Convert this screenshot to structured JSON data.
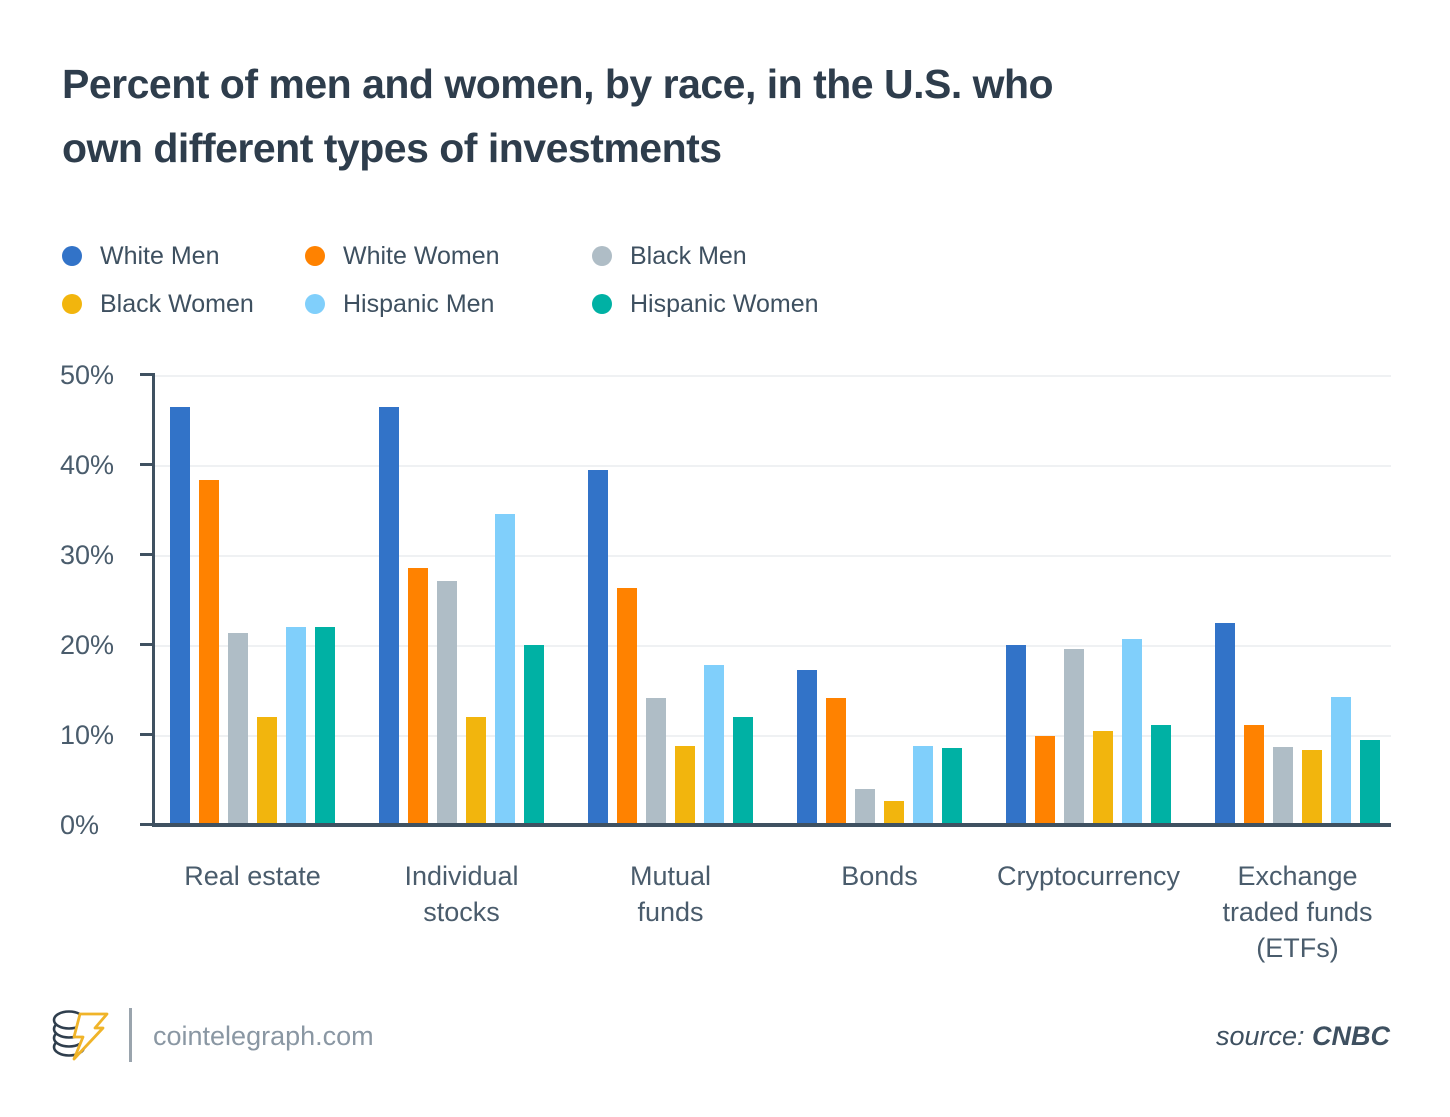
{
  "chart_data": {
    "type": "bar",
    "title": "Percent of men and women, by race, in the U.S. who own different types of investments",
    "title_lines": [
      "Percent of men and women, by race, in the U.S. who",
      "own different types of investments"
    ],
    "categories": [
      "Real estate",
      "Individual stocks",
      "Mutual funds",
      "Bonds",
      "Cryptocurrency",
      "Exchange traded funds (ETFs)"
    ],
    "category_label_lines": [
      [
        "Real estate"
      ],
      [
        "Individual",
        "stocks"
      ],
      [
        "Mutual",
        "funds"
      ],
      [
        "Bonds"
      ],
      [
        "Cryptocurrency"
      ],
      [
        "Exchange",
        "traded funds",
        "(ETFs)"
      ]
    ],
    "series": [
      {
        "name": "White Men",
        "color": "#3273c8",
        "values": [
          46.5,
          46.5,
          39.5,
          17.2,
          20.0,
          22.4
        ]
      },
      {
        "name": "White Women",
        "color": "#ff8200",
        "values": [
          38.3,
          28.6,
          26.3,
          14.1,
          9.9,
          11.1
        ]
      },
      {
        "name": "Black Men",
        "color": "#afbdc6",
        "values": [
          21.3,
          27.1,
          14.1,
          4.0,
          19.6,
          8.7
        ]
      },
      {
        "name": "Black Women",
        "color": "#f2b50d",
        "values": [
          12.0,
          12.0,
          8.8,
          2.7,
          10.4,
          8.3
        ]
      },
      {
        "name": "Hispanic Men",
        "color": "#80cffb",
        "values": [
          22.0,
          34.6,
          17.8,
          8.8,
          20.7,
          14.2
        ]
      },
      {
        "name": "Hispanic Women",
        "color": "#00b1a4",
        "values": [
          22.0,
          20.0,
          12.0,
          8.6,
          11.1,
          9.4
        ]
      }
    ],
    "xlabel": "",
    "ylabel": "",
    "ylim": [
      0,
      50
    ],
    "y_ticks": [
      "50%",
      "40%",
      "30%",
      "20%",
      "10%",
      "0%"
    ],
    "grid": true,
    "legend_position": "top"
  },
  "footer": {
    "site": "cointelegraph.com",
    "source_label": "source:",
    "source_value": "CNBC"
  },
  "colors": {
    "title_text": "#2e3d4c",
    "axis_text": "#4a5c6c",
    "legend_text": "#3e5060",
    "axis_line": "#3f5161",
    "gridline": "#eff1f3",
    "footer_text": "#8a97a3",
    "logo_accent": "#f0b429",
    "logo_outline": "#2f3e4d"
  }
}
